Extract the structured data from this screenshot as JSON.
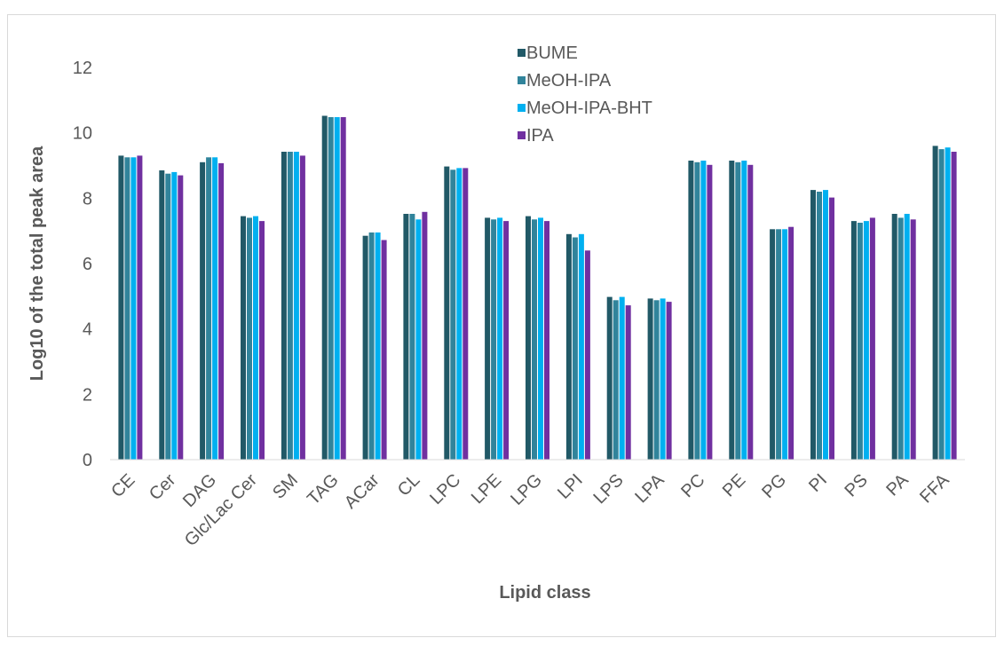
{
  "chart_data": {
    "type": "bar",
    "title": "",
    "xlabel": "Lipid class",
    "ylabel": "Log10 of the total peak area",
    "ylim": [
      0,
      12
    ],
    "yticks": [
      0,
      2,
      4,
      6,
      8,
      10,
      12
    ],
    "grid": false,
    "legend_position": "top-center",
    "categories": [
      "CE",
      "Cer",
      "DAG",
      "Glc/Lac Cer",
      "SM",
      "TAG",
      "ACar",
      "CL",
      "LPC",
      "LPE",
      "LPG",
      "LPI",
      "LPS",
      "LPA",
      "PC",
      "PE",
      "PG",
      "PI",
      "PS",
      "PA",
      "FFA"
    ],
    "series": [
      {
        "name": "BUME",
        "color": "#215967",
        "values": [
          9.3,
          8.85,
          9.1,
          7.45,
          9.42,
          10.52,
          6.85,
          7.52,
          8.97,
          7.4,
          7.45,
          6.9,
          4.98,
          4.93,
          9.15,
          9.15,
          7.05,
          8.25,
          7.3,
          7.52,
          9.6
        ]
      },
      {
        "name": "MeOH-IPA",
        "color": "#31849b",
        "values": [
          9.25,
          8.75,
          9.25,
          7.4,
          9.42,
          10.48,
          6.95,
          7.52,
          8.87,
          7.35,
          7.35,
          6.8,
          4.88,
          4.88,
          9.1,
          9.1,
          7.05,
          8.2,
          7.25,
          7.4,
          9.5
        ]
      },
      {
        "name": "MeOH-IPA-BHT",
        "color": "#00b0f0",
        "values": [
          9.25,
          8.8,
          9.25,
          7.45,
          9.42,
          10.48,
          6.95,
          7.35,
          8.92,
          7.4,
          7.4,
          6.9,
          4.98,
          4.93,
          9.15,
          9.15,
          7.05,
          8.25,
          7.3,
          7.52,
          9.55
        ]
      },
      {
        "name": "IPA",
        "color": "#7030a0",
        "values": [
          9.3,
          8.7,
          9.07,
          7.3,
          9.3,
          10.48,
          6.72,
          7.58,
          8.92,
          7.3,
          7.3,
          6.4,
          4.72,
          4.83,
          9.02,
          9.02,
          7.12,
          8.02,
          7.4,
          7.35,
          9.42
        ]
      }
    ]
  }
}
